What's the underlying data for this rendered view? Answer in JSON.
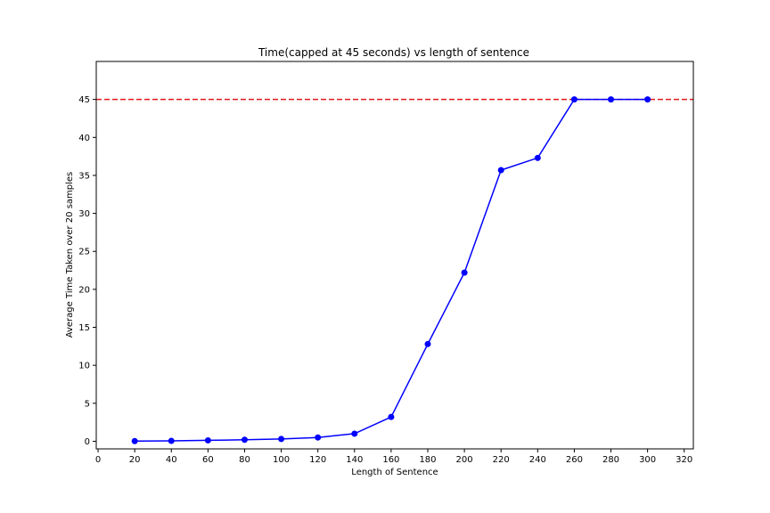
{
  "chart_data": {
    "type": "line",
    "title": "Time(capped at 45 seconds) vs length of sentence",
    "xlabel": "Length of Sentence",
    "ylabel": "Average Time Taken over 20 samples",
    "xlim": [
      -1,
      325
    ],
    "ylim": [
      -1,
      50
    ],
    "xticks": [
      0,
      20,
      40,
      60,
      80,
      100,
      120,
      140,
      160,
      180,
      200,
      220,
      240,
      260,
      280,
      300,
      320
    ],
    "yticks": [
      0,
      5,
      10,
      15,
      20,
      25,
      30,
      35,
      40,
      45
    ],
    "grid": false,
    "series": [
      {
        "color": "#0000ff",
        "marker": "circle",
        "x": [
          20,
          40,
          60,
          80,
          100,
          120,
          140,
          160,
          180,
          200,
          220,
          240,
          260,
          280,
          300
        ],
        "y": [
          0.02,
          0.05,
          0.12,
          0.2,
          0.3,
          0.5,
          1.0,
          3.2,
          12.8,
          22.2,
          35.7,
          37.3,
          45.0,
          45.0,
          45.0
        ]
      }
    ],
    "reference_line": {
      "y": 45,
      "color": "#e41a1c",
      "style": "dashed"
    }
  }
}
